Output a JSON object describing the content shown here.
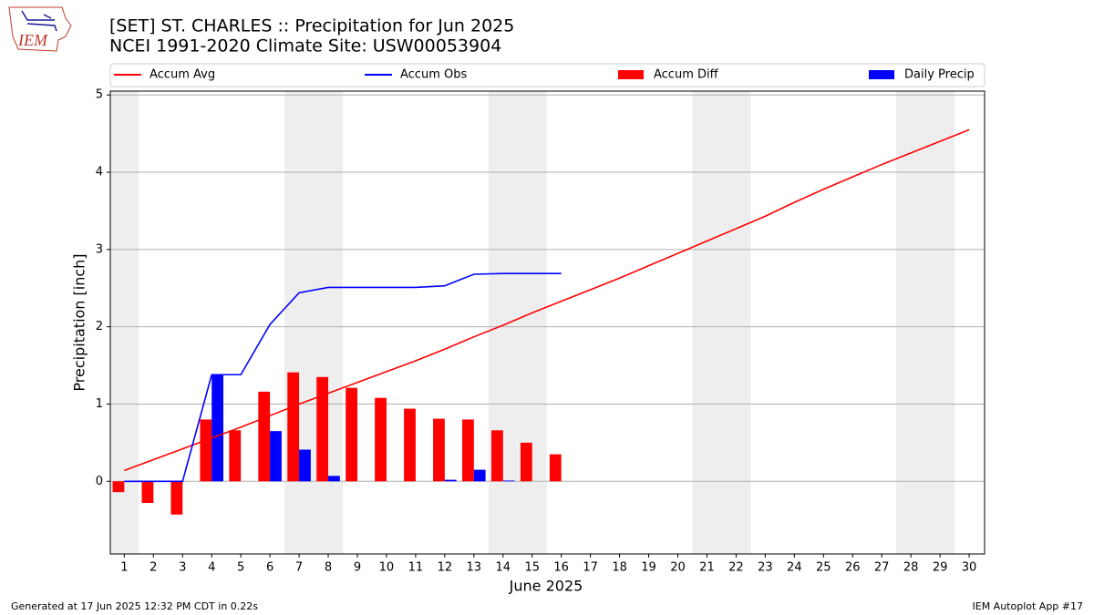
{
  "logo_text": "IEM",
  "footer_left": "Generated at 17 Jun 2025 12:32 PM CDT in 0.22s",
  "footer_right": "IEM Autoplot App #17",
  "chart_data": {
    "type": "combo",
    "title": "[SET] ST. CHARLES :: Precipitation for Jun 2025",
    "subtitle": "NCEI 1991-2020 Climate Site: USW00053904",
    "x_label": "June 2025",
    "y_label": "Precipitation [inch]",
    "x": [
      1,
      2,
      3,
      4,
      5,
      6,
      7,
      8,
      9,
      10,
      11,
      12,
      13,
      14,
      15,
      16,
      17,
      18,
      19,
      20,
      21,
      22,
      23,
      24,
      25,
      26,
      27,
      28,
      29,
      30
    ],
    "xlim": [
      0.52,
      30.53
    ],
    "xticks": [
      1,
      2,
      3,
      4,
      5,
      6,
      7,
      8,
      9,
      10,
      11,
      12,
      13,
      14,
      15,
      16,
      17,
      18,
      19,
      20,
      21,
      22,
      23,
      24,
      25,
      26,
      27,
      28,
      29,
      30
    ],
    "ylim": [
      -0.94,
      5.05
    ],
    "yticks": [
      0,
      1,
      2,
      3,
      4,
      5
    ],
    "grid": true,
    "shaded_days": [
      1,
      7,
      8,
      14,
      15,
      21,
      22,
      28,
      29
    ],
    "series": [
      {
        "name": "Accum Avg",
        "type": "line",
        "color": "#ff0000",
        "values": [
          0.14,
          0.28,
          0.42,
          0.56,
          0.7,
          0.85,
          1.0,
          1.14,
          1.28,
          1.42,
          1.56,
          1.71,
          1.87,
          2.02,
          2.18,
          2.33,
          2.48,
          2.63,
          2.79,
          2.95,
          3.11,
          3.27,
          3.43,
          3.61,
          3.78,
          3.94,
          4.1,
          4.25,
          4.4,
          4.55
        ]
      },
      {
        "name": "Accum Obs",
        "type": "line",
        "color": "#0000ff",
        "values": [
          0,
          0,
          0,
          1.38,
          1.38,
          2.03,
          2.44,
          2.51,
          2.51,
          2.51,
          2.51,
          2.53,
          2.68,
          2.69,
          2.69,
          2.69,
          null,
          null,
          null,
          null,
          null,
          null,
          null,
          null,
          null,
          null,
          null,
          null,
          null,
          null
        ]
      },
      {
        "name": "Accum Diff",
        "type": "bar",
        "color": "#ff0000",
        "values": [
          -0.14,
          -0.28,
          -0.43,
          0.8,
          0.66,
          1.16,
          1.41,
          1.35,
          1.21,
          1.08,
          0.94,
          0.81,
          0.8,
          0.66,
          0.5,
          0.35,
          null,
          null,
          null,
          null,
          null,
          null,
          null,
          null,
          null,
          null,
          null,
          null,
          null,
          null
        ]
      },
      {
        "name": "Daily Precip",
        "type": "bar",
        "color": "#0000ff",
        "values": [
          0,
          0,
          0,
          1.38,
          0,
          0.65,
          0.41,
          0.07,
          0,
          0,
          0,
          0.02,
          0.15,
          0.01,
          0,
          0,
          null,
          null,
          null,
          null,
          null,
          null,
          null,
          null,
          null,
          null,
          null,
          null,
          null,
          null
        ]
      }
    ]
  }
}
